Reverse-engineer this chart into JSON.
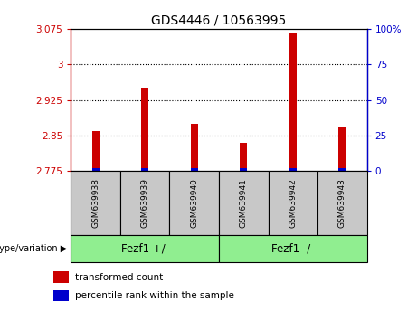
{
  "title": "GDS4446 / 10563995",
  "samples": [
    "GSM639938",
    "GSM639939",
    "GSM639940",
    "GSM639941",
    "GSM639942",
    "GSM639943"
  ],
  "red_values": [
    2.86,
    2.95,
    2.875,
    2.835,
    3.065,
    2.87
  ],
  "blue_percentile": [
    2,
    2,
    2,
    2,
    2,
    2
  ],
  "y_min": 2.775,
  "y_max": 3.075,
  "y_ticks": [
    2.775,
    2.85,
    2.925,
    3.0,
    3.075
  ],
  "y_tick_labels": [
    "2.775",
    "2.85",
    "2.925",
    "3",
    "3.075"
  ],
  "right_y_ticks": [
    0,
    25,
    50,
    75,
    100
  ],
  "right_y_tick_labels": [
    "0",
    "25",
    "50",
    "75",
    "100%"
  ],
  "grid_lines": [
    2.85,
    2.925,
    3.0
  ],
  "group1_label": "Fezf1 +/-",
  "group2_label": "Fezf1 -/-",
  "group1_indices": [
    0,
    1,
    2
  ],
  "group2_indices": [
    3,
    4,
    5
  ],
  "legend_red_label": "transformed count",
  "legend_blue_label": "percentile rank within the sample",
  "genotype_label": "genotype/variation",
  "bar_width": 0.15,
  "red_color": "#cc0000",
  "blue_color": "#0000cc",
  "group_bg_color": "#90EE90",
  "sample_bg_color": "#c8c8c8",
  "fig_width": 4.61,
  "fig_height": 3.54,
  "dpi": 100
}
